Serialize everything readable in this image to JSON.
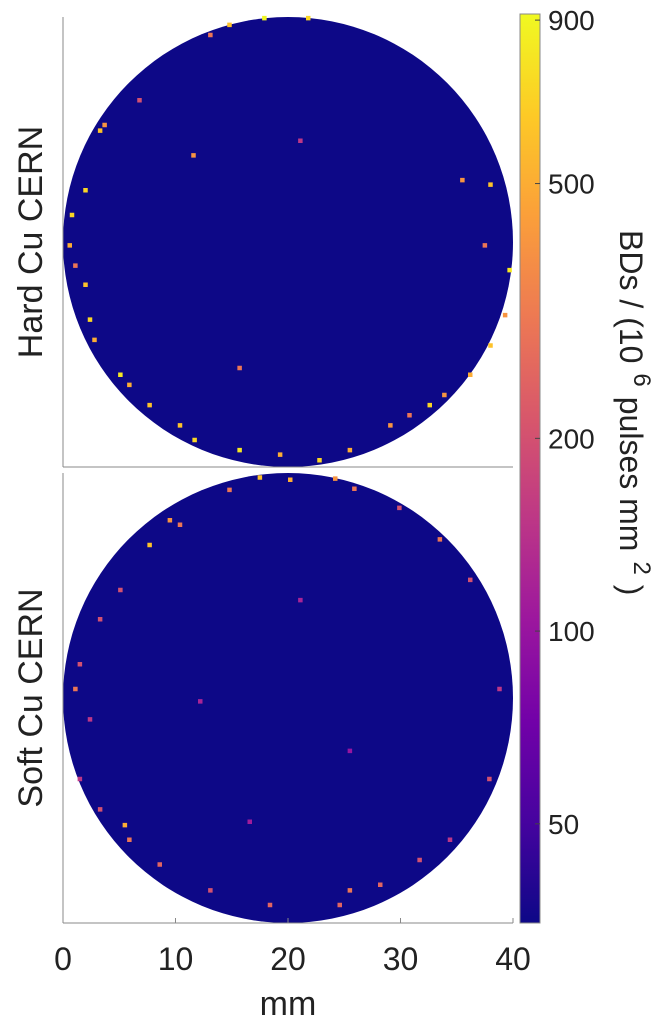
{
  "chart_data": [
    {
      "type": "heatmap",
      "ylabel": "Hard Cu CERN",
      "xlim": [
        0,
        40
      ],
      "ylim": [
        0,
        40
      ],
      "base_value": 35,
      "x": [
        17.9,
        21.8,
        14.8,
        13.1,
        3.3,
        3.7,
        2.0,
        0.8,
        0.6,
        1.1,
        2.0,
        2.4,
        2.8,
        5.1,
        5.9,
        7.7,
        10.4,
        11.7,
        15.7,
        19.3,
        22.8,
        25.5,
        29.1,
        30.8,
        32.6,
        33.9,
        36.2,
        38.0,
        39.3,
        39.7,
        38.0,
        37.5,
        35.5,
        11.6,
        15.7,
        6.8,
        21.1
      ],
      "y": [
        39.9,
        39.9,
        39.3,
        38.4,
        29.9,
        30.4,
        24.6,
        22.4,
        19.7,
        17.9,
        16.2,
        13.1,
        11.3,
        8.2,
        7.3,
        5.5,
        3.7,
        2.4,
        1.5,
        1.1,
        0.6,
        1.5,
        3.7,
        4.6,
        5.5,
        6.4,
        8.2,
        10.8,
        13.5,
        17.5,
        25.1,
        19.7,
        25.5,
        27.7,
        8.8,
        32.6,
        29.0
      ],
      "values": [
        900,
        700,
        600,
        300,
        600,
        400,
        700,
        700,
        500,
        300,
        600,
        700,
        500,
        800,
        500,
        600,
        600,
        700,
        800,
        500,
        700,
        500,
        400,
        300,
        700,
        400,
        500,
        600,
        400,
        800,
        600,
        300,
        400,
        400,
        300,
        200,
        150
      ]
    },
    {
      "type": "heatmap",
      "ylabel": "Soft Cu CERN",
      "xlim": [
        0,
        40
      ],
      "ylim": [
        0,
        40
      ],
      "base_value": 35,
      "x": [
        17.5,
        20.2,
        14.8,
        9.5,
        10.4,
        7.7,
        5.1,
        3.3,
        1.5,
        1.1,
        2.4,
        1.5,
        3.3,
        5.5,
        5.9,
        8.6,
        13.1,
        18.4,
        24.6,
        25.5,
        28.2,
        31.7,
        34.4,
        37.9,
        38.8,
        36.2,
        33.5,
        25.9,
        24.2,
        29.9,
        21.1,
        12.2,
        25.5,
        16.6
      ],
      "y": [
        39.6,
        39.4,
        38.5,
        35.8,
        35.4,
        33.6,
        29.6,
        27.0,
        23.0,
        20.8,
        18.1,
        12.8,
        10.1,
        8.7,
        7.4,
        5.2,
        2.9,
        1.6,
        1.6,
        2.9,
        3.4,
        5.6,
        7.4,
        12.8,
        20.8,
        30.5,
        34.1,
        38.6,
        39.5,
        36.9,
        28.7,
        19.7,
        15.3,
        9.0
      ],
      "values": [
        600,
        500,
        300,
        400,
        300,
        600,
        200,
        200,
        200,
        300,
        150,
        150,
        200,
        500,
        300,
        250,
        200,
        250,
        250,
        300,
        250,
        200,
        150,
        200,
        150,
        200,
        300,
        300,
        400,
        200,
        120,
        120,
        100,
        110
      ],
      "xticks": [
        0,
        10,
        20,
        30,
        40
      ],
      "xlabel": "mm",
      "colormap": "plasma",
      "log_scale": true,
      "clim": [
        35,
        920
      ],
      "cticks": [
        50,
        100,
        200,
        500,
        900
      ],
      "colorbar_label": [
        "BDs / (10",
        "6",
        "pulses mm",
        "2",
        ")"
      ]
    }
  ]
}
